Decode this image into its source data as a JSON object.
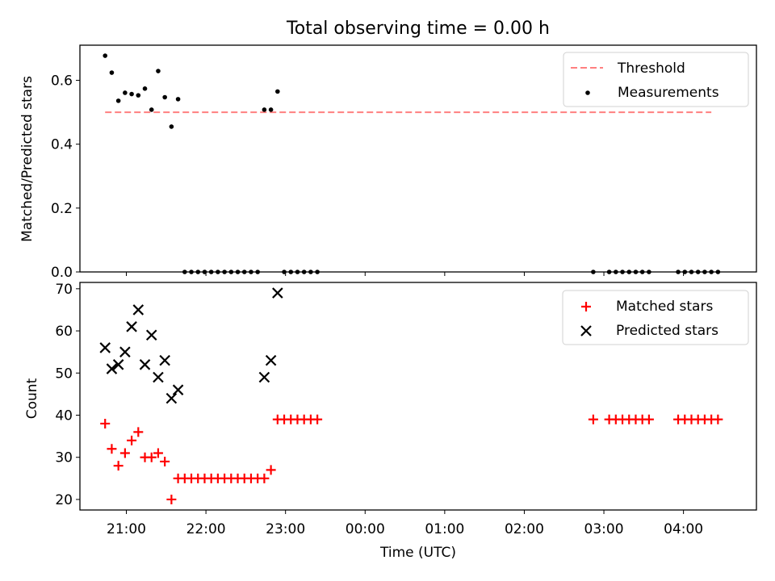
{
  "figure": {
    "title": "Total observing time = 0.00 h"
  },
  "chart_data": [
    {
      "type": "scatter",
      "title": "Total observing time = 0.00 h",
      "xlabel": "",
      "ylabel": "Matched/Predicted stars",
      "x_is_time_utc": true,
      "xlim": [
        "20:25",
        "04:55"
      ],
      "ylim": [
        0,
        0.71
      ],
      "yticks": [
        "0.0",
        "0.2",
        "0.4",
        "0.6"
      ],
      "legend": {
        "placement": "upper right",
        "entries": [
          "Threshold",
          "Measurements"
        ]
      },
      "threshold": {
        "name": "Threshold",
        "value": 0.5,
        "x_start": "20:44",
        "x_end": "04:21",
        "color": "#ff7f7f",
        "style": "dashed"
      },
      "series": [
        {
          "name": "Measurements",
          "marker": "dot",
          "color": "#000000",
          "points": [
            [
              "20:44",
              0.677
            ],
            [
              "20:49",
              0.624
            ],
            [
              "20:54",
              0.536
            ],
            [
              "20:59",
              0.561
            ],
            [
              "21:04",
              0.557
            ],
            [
              "21:09",
              0.553
            ],
            [
              "21:14",
              0.574
            ],
            [
              "21:19",
              0.508
            ],
            [
              "21:24",
              0.629
            ],
            [
              "21:29",
              0.547
            ],
            [
              "21:34",
              0.455
            ],
            [
              "21:39",
              0.541
            ],
            [
              "21:44",
              0.0
            ],
            [
              "21:49",
              0.0
            ],
            [
              "21:54",
              0.0
            ],
            [
              "21:59",
              0.0
            ],
            [
              "22:04",
              0.0
            ],
            [
              "22:09",
              0.0
            ],
            [
              "22:14",
              0.0
            ],
            [
              "22:19",
              0.0
            ],
            [
              "22:24",
              0.0
            ],
            [
              "22:29",
              0.0
            ],
            [
              "22:34",
              0.0
            ],
            [
              "22:39",
              0.0
            ],
            [
              "22:44",
              0.508
            ],
            [
              "22:49",
              0.508
            ],
            [
              "22:54",
              0.565
            ],
            [
              "22:59",
              0.0
            ],
            [
              "23:04",
              0.0
            ],
            [
              "23:09",
              0.0
            ],
            [
              "23:14",
              0.0
            ],
            [
              "23:19",
              0.0
            ],
            [
              "23:24",
              0.0
            ],
            [
              "02:52",
              0.0
            ],
            [
              "03:04",
              0.0
            ],
            [
              "03:09",
              0.0
            ],
            [
              "03:14",
              0.0
            ],
            [
              "03:19",
              0.0
            ],
            [
              "03:24",
              0.0
            ],
            [
              "03:29",
              0.0
            ],
            [
              "03:34",
              0.0
            ],
            [
              "03:56",
              0.0
            ],
            [
              "04:01",
              0.0
            ],
            [
              "04:06",
              0.0
            ],
            [
              "04:11",
              0.0
            ],
            [
              "04:16",
              0.0
            ],
            [
              "04:21",
              0.0
            ],
            [
              "04:26",
              0.0
            ]
          ]
        }
      ]
    },
    {
      "type": "scatter",
      "title": "",
      "xlabel": "Time (UTC)",
      "ylabel": "Count",
      "x_is_time_utc": true,
      "xlim": [
        "20:25",
        "04:55"
      ],
      "ylim": [
        17.5,
        71.5
      ],
      "xticks": [
        "21:00",
        "22:00",
        "23:00",
        "00:00",
        "01:00",
        "02:00",
        "03:00",
        "04:00"
      ],
      "yticks": [
        "20",
        "30",
        "40",
        "50",
        "60",
        "70"
      ],
      "legend": {
        "placement": "upper right",
        "entries": [
          "Matched stars",
          "Predicted stars"
        ]
      },
      "series": [
        {
          "name": "Matched stars",
          "marker": "plus",
          "color": "#ff0000",
          "points": [
            [
              "20:44",
              38
            ],
            [
              "20:49",
              32
            ],
            [
              "20:54",
              28
            ],
            [
              "20:59",
              31
            ],
            [
              "21:04",
              34
            ],
            [
              "21:09",
              36
            ],
            [
              "21:14",
              30
            ],
            [
              "21:19",
              30
            ],
            [
              "21:24",
              31
            ],
            [
              "21:29",
              29
            ],
            [
              "21:34",
              20
            ],
            [
              "21:39",
              25
            ],
            [
              "21:44",
              25
            ],
            [
              "21:49",
              25
            ],
            [
              "21:54",
              25
            ],
            [
              "21:59",
              25
            ],
            [
              "22:04",
              25
            ],
            [
              "22:09",
              25
            ],
            [
              "22:14",
              25
            ],
            [
              "22:19",
              25
            ],
            [
              "22:24",
              25
            ],
            [
              "22:29",
              25
            ],
            [
              "22:34",
              25
            ],
            [
              "22:39",
              25
            ],
            [
              "22:44",
              25
            ],
            [
              "22:49",
              27
            ],
            [
              "22:54",
              39
            ],
            [
              "22:59",
              39
            ],
            [
              "23:04",
              39
            ],
            [
              "23:09",
              39
            ],
            [
              "23:14",
              39
            ],
            [
              "23:19",
              39
            ],
            [
              "23:24",
              39
            ],
            [
              "02:52",
              39
            ],
            [
              "03:04",
              39
            ],
            [
              "03:09",
              39
            ],
            [
              "03:14",
              39
            ],
            [
              "03:19",
              39
            ],
            [
              "03:24",
              39
            ],
            [
              "03:29",
              39
            ],
            [
              "03:34",
              39
            ],
            [
              "03:56",
              39
            ],
            [
              "04:01",
              39
            ],
            [
              "04:06",
              39
            ],
            [
              "04:11",
              39
            ],
            [
              "04:16",
              39
            ],
            [
              "04:21",
              39
            ],
            [
              "04:26",
              39
            ]
          ]
        },
        {
          "name": "Predicted stars",
          "marker": "x",
          "color": "#000000",
          "points": [
            [
              "20:44",
              56
            ],
            [
              "20:49",
              51
            ],
            [
              "20:54",
              52
            ],
            [
              "20:59",
              55
            ],
            [
              "21:04",
              61
            ],
            [
              "21:09",
              65
            ],
            [
              "21:14",
              52
            ],
            [
              "21:19",
              59
            ],
            [
              "21:24",
              49
            ],
            [
              "21:29",
              53
            ],
            [
              "21:34",
              44
            ],
            [
              "21:39",
              46
            ],
            [
              "22:44",
              49
            ],
            [
              "22:49",
              53
            ],
            [
              "22:54",
              69
            ]
          ]
        }
      ]
    }
  ]
}
